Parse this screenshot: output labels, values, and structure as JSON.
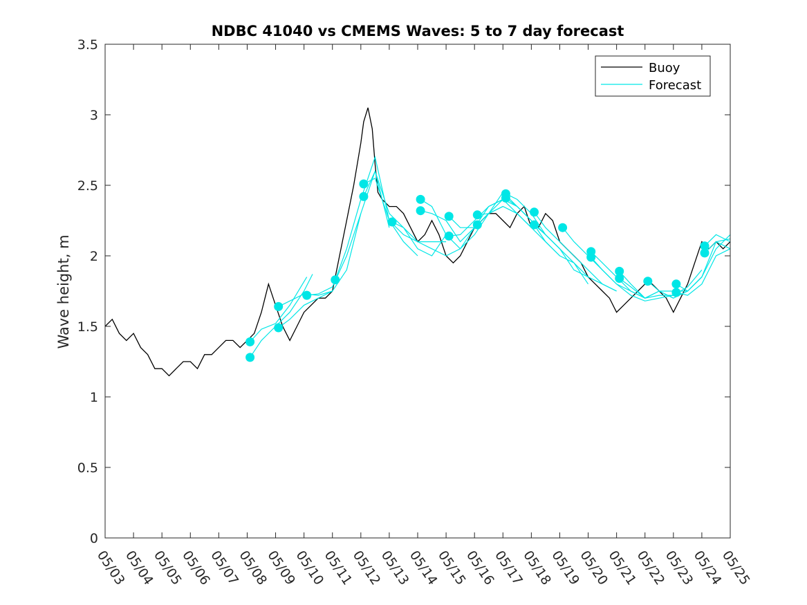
{
  "chart_data": {
    "type": "line",
    "title": "NDBC 41040 vs CMEMS Waves: 5 to 7 day forecast",
    "xlabel": "",
    "ylabel": "Wave height, m",
    "ylim": [
      0,
      3.5
    ],
    "yticks": [
      "0",
      "0.5",
      "1",
      "1.5",
      "2",
      "2.5",
      "3",
      "3.5"
    ],
    "xlim": [
      0,
      22
    ],
    "xticks": [
      "05/03",
      "05/04",
      "05/05",
      "05/06",
      "05/07",
      "05/08",
      "05/09",
      "05/10",
      "05/11",
      "05/12",
      "05/13",
      "05/14",
      "05/15",
      "05/16",
      "05/17",
      "05/18",
      "05/19",
      "05/20",
      "05/21",
      "05/22",
      "05/23",
      "05/24",
      "05/25"
    ],
    "legend": {
      "position": "top-right",
      "entries": [
        "Buoy",
        "Forecast"
      ]
    },
    "colors": {
      "buoy": "#000000",
      "forecast": "#00e6e6",
      "axis": "#262626"
    },
    "series": [
      {
        "name": "Buoy",
        "x": [
          0,
          0.25,
          0.5,
          0.75,
          1,
          1.25,
          1.5,
          1.75,
          2,
          2.25,
          2.5,
          2.75,
          3,
          3.25,
          3.5,
          3.75,
          4,
          4.25,
          4.5,
          4.75,
          5,
          5.25,
          5.5,
          5.75,
          6,
          6.25,
          6.5,
          6.75,
          7,
          7.25,
          7.5,
          7.75,
          8,
          8.25,
          8.5,
          8.75,
          9,
          9.1,
          9.25,
          9.4,
          9.5,
          9.6,
          9.75,
          10,
          10.25,
          10.5,
          10.75,
          11,
          11.25,
          11.5,
          11.75,
          12,
          12.25,
          12.5,
          12.75,
          13,
          13.25,
          13.5,
          13.75,
          14,
          14.25,
          14.5,
          14.75,
          15,
          15.25,
          15.5,
          15.75,
          16,
          16.25,
          16.5,
          16.75,
          17,
          17.25,
          17.5,
          17.75,
          18,
          18.25,
          18.5,
          18.75,
          19,
          19.25,
          19.5,
          19.75,
          20,
          20.25,
          20.5,
          20.75,
          21,
          21.25,
          21.5,
          21.75,
          22
        ],
        "y": [
          1.5,
          1.55,
          1.45,
          1.4,
          1.45,
          1.35,
          1.3,
          1.2,
          1.2,
          1.15,
          1.2,
          1.25,
          1.25,
          1.2,
          1.3,
          1.3,
          1.35,
          1.4,
          1.4,
          1.35,
          1.4,
          1.45,
          1.6,
          1.8,
          1.65,
          1.5,
          1.4,
          1.5,
          1.6,
          1.65,
          1.7,
          1.7,
          1.75,
          2.0,
          2.25,
          2.5,
          2.8,
          2.95,
          3.05,
          2.9,
          2.65,
          2.45,
          2.4,
          2.35,
          2.35,
          2.3,
          2.2,
          2.1,
          2.15,
          2.25,
          2.15,
          2.0,
          1.95,
          2.0,
          2.1,
          2.2,
          2.25,
          2.3,
          2.3,
          2.25,
          2.2,
          2.3,
          2.35,
          2.2,
          2.2,
          2.3,
          2.25,
          2.1,
          2.05,
          2.0,
          1.95,
          1.85,
          1.8,
          1.75,
          1.7,
          1.6,
          1.65,
          1.7,
          1.75,
          1.8,
          1.8,
          1.75,
          1.7,
          1.6,
          1.7,
          1.8,
          1.95,
          2.1,
          2.05,
          2.1,
          2.05,
          2.1
        ]
      },
      {
        "name": "Forecast",
        "runs": [
          {
            "x": [
              5.1,
              5.5,
              6,
              6.5,
              7,
              7.3
            ],
            "y": [
              1.28,
              1.4,
              1.5,
              1.6,
              1.75,
              1.87
            ]
          },
          {
            "x": [
              5.1,
              5.5,
              6,
              6.5,
              7.1
            ],
            "y": [
              1.39,
              1.48,
              1.52,
              1.65,
              1.85
            ]
          },
          {
            "x": [
              6.1,
              6.5,
              7,
              7.5,
              8,
              8.5,
              9
            ],
            "y": [
              1.49,
              1.55,
              1.65,
              1.7,
              1.75,
              1.9,
              2.3
            ]
          },
          {
            "x": [
              6.1,
              6.5,
              7,
              7.5,
              8
            ],
            "y": [
              1.64,
              1.68,
              1.73,
              1.72,
              1.75
            ]
          },
          {
            "x": [
              7.1,
              7.5,
              8,
              8.5,
              9,
              9.5,
              10
            ],
            "y": [
              1.72,
              1.73,
              1.78,
              2.0,
              2.3,
              2.6,
              2.2
            ]
          },
          {
            "x": [
              8.1,
              8.5,
              9,
              9.25,
              9.5,
              10,
              10.5,
              11
            ],
            "y": [
              1.83,
              2.05,
              2.4,
              2.55,
              2.7,
              2.25,
              2.1,
              2.0
            ]
          },
          {
            "x": [
              9.1,
              9.5,
              10,
              10.5,
              11,
              11.5,
              12
            ],
            "y": [
              2.42,
              2.6,
              2.3,
              2.2,
              2.05,
              2.0,
              2.15
            ]
          },
          {
            "x": [
              9.1,
              9.5,
              10,
              10.5,
              11,
              11.5,
              12
            ],
            "y": [
              2.51,
              2.55,
              2.25,
              2.15,
              2.1,
              2.1,
              2.1
            ]
          },
          {
            "x": [
              10.1,
              10.5,
              11,
              11.5,
              12,
              12.5,
              13
            ],
            "y": [
              2.24,
              2.2,
              2.1,
              2.05,
              2.0,
              2.05,
              2.2
            ]
          },
          {
            "x": [
              11.1,
              11.5,
              12,
              12.5,
              13,
              13.5,
              14
            ],
            "y": [
              2.4,
              2.35,
              2.15,
              2.05,
              2.15,
              2.3,
              2.35
            ]
          },
          {
            "x": [
              11.1,
              11.5,
              12,
              12.5,
              13,
              13.5,
              14
            ],
            "y": [
              2.32,
              2.3,
              2.25,
              2.1,
              2.2,
              2.35,
              2.4
            ]
          },
          {
            "x": [
              12.1,
              12.5,
              13,
              13.5,
              14,
              14.5,
              15
            ],
            "y": [
              2.28,
              2.2,
              2.2,
              2.3,
              2.45,
              2.35,
              2.25
            ]
          },
          {
            "x": [
              12.1,
              12.5,
              13,
              13.5,
              14,
              14.5,
              15
            ],
            "y": [
              2.14,
              2.15,
              2.25,
              2.35,
              2.4,
              2.3,
              2.2
            ]
          },
          {
            "x": [
              13.1,
              13.5,
              14,
              14.5,
              15,
              15.5,
              16
            ],
            "y": [
              2.29,
              2.3,
              2.4,
              2.35,
              2.25,
              2.15,
              2.05
            ]
          },
          {
            "x": [
              13.1,
              13.5,
              14,
              14.5,
              15,
              15.5,
              16
            ],
            "y": [
              2.22,
              2.3,
              2.35,
              2.3,
              2.2,
              2.1,
              2.0
            ]
          },
          {
            "x": [
              14.1,
              14.5,
              15,
              15.5,
              16,
              16.5,
              17
            ],
            "y": [
              2.44,
              2.4,
              2.3,
              2.15,
              2.05,
              1.9,
              1.85
            ]
          },
          {
            "x": [
              14.1,
              14.5,
              15,
              15.5,
              16,
              16.5,
              17
            ],
            "y": [
              2.41,
              2.35,
              2.25,
              2.1,
              2.0,
              1.95,
              1.8
            ]
          },
          {
            "x": [
              15.1,
              15.5,
              16,
              16.5,
              17,
              17.5,
              18
            ],
            "y": [
              2.31,
              2.2,
              2.1,
              2.0,
              1.9,
              1.8,
              1.75
            ]
          },
          {
            "x": [
              15.1,
              15.5,
              16,
              16.5,
              17,
              17.5,
              18
            ],
            "y": [
              2.22,
              2.15,
              2.05,
              1.95,
              1.85,
              1.8,
              1.75
            ]
          },
          {
            "x": [
              16.1,
              16.5,
              17,
              17.5,
              18,
              18.5,
              19
            ],
            "y": [
              2.2,
              2.1,
              2.0,
              1.9,
              1.8,
              1.75,
              1.7
            ]
          },
          {
            "x": [
              17.1,
              17.5,
              18,
              18.5,
              19,
              19.5,
              20
            ],
            "y": [
              2.03,
              1.95,
              1.85,
              1.75,
              1.7,
              1.75,
              1.7
            ]
          },
          {
            "x": [
              17.1,
              17.5,
              18,
              18.5,
              19,
              19.5,
              20
            ],
            "y": [
              1.99,
              1.9,
              1.8,
              1.72,
              1.68,
              1.7,
              1.72
            ]
          },
          {
            "x": [
              18.1,
              18.5,
              19,
              19.5,
              20,
              20.5,
              21
            ],
            "y": [
              1.89,
              1.8,
              1.7,
              1.75,
              1.75,
              1.75,
              1.85
            ]
          },
          {
            "x": [
              18.1,
              18.5,
              19,
              19.5,
              20,
              20.5,
              21
            ],
            "y": [
              1.84,
              1.78,
              1.7,
              1.72,
              1.72,
              1.78,
              1.9
            ]
          },
          {
            "x": [
              19.1,
              19.5,
              20,
              20.5,
              21,
              21.5,
              22
            ],
            "y": [
              1.82,
              1.75,
              1.7,
              1.75,
              1.85,
              2.05,
              2.15
            ]
          },
          {
            "x": [
              20.1,
              20.5,
              21,
              21.5,
              22
            ],
            "y": [
              1.8,
              1.75,
              1.85,
              2.1,
              2.12
            ]
          },
          {
            "x": [
              20.1,
              20.5,
              21,
              21.5,
              22
            ],
            "y": [
              1.74,
              1.72,
              1.8,
              2.0,
              2.05
            ]
          },
          {
            "x": [
              21.1,
              21.5,
              22
            ],
            "y": [
              2.07,
              2.15,
              2.1
            ]
          },
          {
            "x": [
              21.1,
              21.5,
              22
            ],
            "y": [
              2.02,
              2.1,
              2.05
            ]
          }
        ]
      }
    ]
  }
}
